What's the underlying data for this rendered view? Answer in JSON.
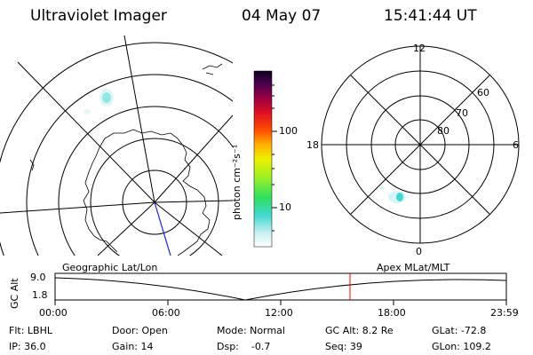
{
  "header": {
    "instrument": "Ultraviolet Imager",
    "date": "04 May 07",
    "time": "15:41:44 UT"
  },
  "colorbar": {
    "unit_label": "photon cm⁻²s⁻¹",
    "ticks": [
      "100",
      "10"
    ]
  },
  "left_map": {
    "label": "Geographic Lat/Lon"
  },
  "right_polar": {
    "label": "Apex MLat/MLT",
    "mlt_labels": {
      "top": "12",
      "left": "18",
      "right": "6",
      "bottom": "0"
    },
    "lat_labels": [
      "60",
      "70",
      "80"
    ]
  },
  "altitude_track": {
    "axis_label": "GC Alt",
    "ymax": "9.0",
    "ymin": "1.8",
    "time_ticks": [
      "00:00",
      "06:00",
      "12:00",
      "18:00",
      "23:59"
    ],
    "marker_color": "#ff0000"
  },
  "info": {
    "filter": "Flt: LBHL",
    "door": "Door: Open",
    "mode": "Mode: Normal",
    "gc_alt": "GC Alt: 8.2 Re",
    "glat": "GLat: -72.8",
    "ip": "IP: 36.0",
    "gain": "Gain: 14",
    "dsp": "Dsp:    -0.7",
    "seq": "Seq: 39",
    "glon": "GLon: 109.2"
  }
}
